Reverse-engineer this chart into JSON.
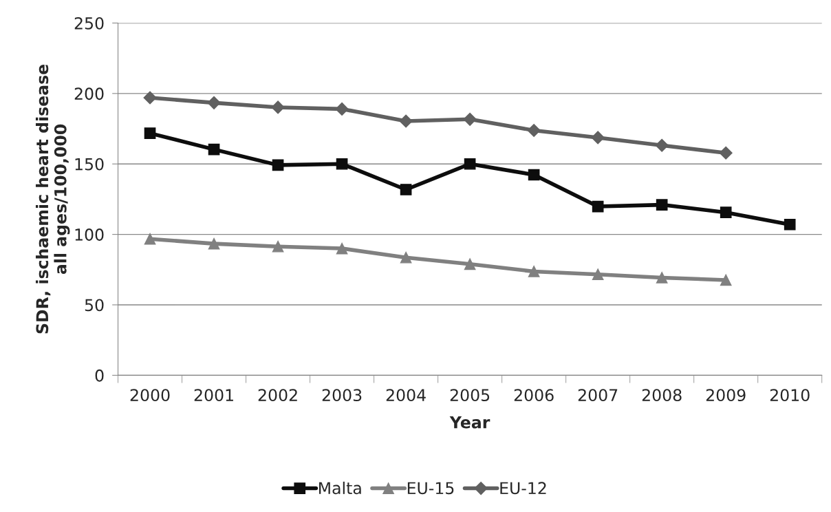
{
  "chart_data": {
    "type": "line",
    "xlabel": "Year",
    "ylabel": "SDR, ischaemic heart disease\nall ages/100,000",
    "categories": [
      "2000",
      "2001",
      "2002",
      "2003",
      "2004",
      "2005",
      "2006",
      "2007",
      "2008",
      "2009",
      "2010"
    ],
    "series": [
      {
        "name": "Malta",
        "color": "#0d0d0d",
        "marker": "square",
        "values": [
          171.8,
          160.3,
          149.2,
          150,
          131.8,
          150,
          142.3,
          119.8,
          121,
          115.6,
          107
        ]
      },
      {
        "name": "EU-15",
        "color": "#808080",
        "marker": "triangle",
        "values": [
          96.8,
          93.4,
          91.4,
          90,
          83.6,
          78.9,
          73.7,
          71.6,
          69.3,
          67.6,
          null
        ]
      },
      {
        "name": "EU-12",
        "color": "#606060",
        "marker": "diamond",
        "values": [
          197,
          193.4,
          190.2,
          189,
          180.4,
          181.7,
          173.8,
          168.7,
          163.2,
          157.8,
          null
        ]
      }
    ],
    "ylim": [
      0,
      250
    ],
    "yticks": [
      0,
      50,
      100,
      150,
      200,
      250
    ],
    "grid": "y",
    "legend": "bottom",
    "line_style": "solid"
  }
}
